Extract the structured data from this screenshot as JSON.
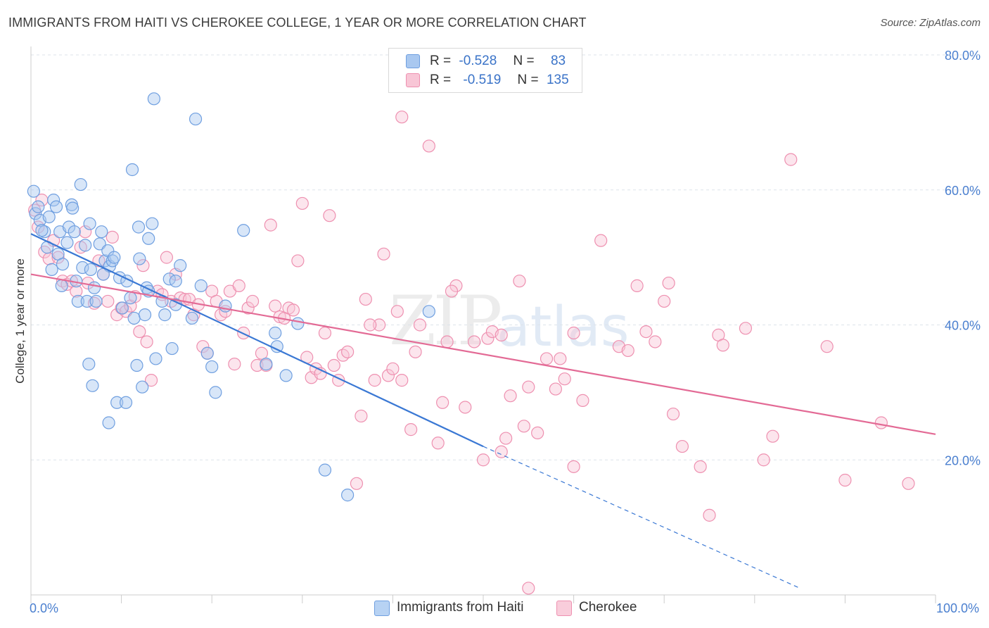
{
  "title": "IMMIGRANTS FROM HAITI VS CHEROKEE COLLEGE, 1 YEAR OR MORE CORRELATION CHART",
  "source": "Source: ZipAtlas.com",
  "watermark": {
    "zip": "ZIP",
    "atlas": "atlas"
  },
  "legend": {
    "r_label": "R =",
    "n_label": "N =",
    "rows": [
      {
        "r": "-0.528",
        "n": "83",
        "color": "#a9c8f0",
        "border": "#6f9fe0"
      },
      {
        "r": "-0.519",
        "n": "135",
        "color": "#f8c6d6",
        "border": "#ee90b0"
      }
    ]
  },
  "bottom_legend": [
    {
      "label": "Immigrants from Haiti",
      "color": "#b7d2f3",
      "border": "#6f9fe0"
    },
    {
      "label": "Cherokee",
      "color": "#f9cddb",
      "border": "#ee90b0"
    }
  ],
  "chart_data": {
    "type": "scatter",
    "xlabel": "",
    "ylabel": "College, 1 year or more",
    "xlim": [
      0,
      100
    ],
    "ylim": [
      0,
      80
    ],
    "x_tick_labels": [
      "0.0%",
      "100.0%"
    ],
    "y_ticks": [
      20,
      40,
      60,
      80
    ],
    "y_tick_labels": [
      "20.0%",
      "40.0%",
      "60.0%",
      "80.0%"
    ],
    "grid": "horizontal dashed",
    "series": [
      {
        "name": "Immigrants from Haiti",
        "color": "#6f9fe0",
        "fill": "rgba(169,200,240,0.45)",
        "trend": {
          "x": [
            0,
            50
          ],
          "y": [
            53.5,
            22.0
          ],
          "dashed_to": [
            85,
            1.0
          ],
          "color": "#3a78d4"
        },
        "points": [
          [
            0.3,
            59.8
          ],
          [
            0.5,
            56.5
          ],
          [
            0.8,
            57.5
          ],
          [
            1.0,
            55.5
          ],
          [
            1.5,
            53.8
          ],
          [
            1.8,
            51.5
          ],
          [
            2.3,
            48.2
          ],
          [
            2.5,
            58.5
          ],
          [
            2.8,
            57.5
          ],
          [
            3.0,
            50.5
          ],
          [
            3.2,
            53.8
          ],
          [
            3.4,
            45.8
          ],
          [
            4.0,
            52.2
          ],
          [
            4.2,
            54.5
          ],
          [
            4.5,
            57.8
          ],
          [
            4.6,
            57.3
          ],
          [
            4.8,
            53.8
          ],
          [
            5.0,
            46.5
          ],
          [
            5.2,
            43.5
          ],
          [
            5.5,
            60.8
          ],
          [
            5.7,
            48.5
          ],
          [
            6.0,
            51.8
          ],
          [
            6.2,
            43.5
          ],
          [
            6.4,
            34.2
          ],
          [
            6.6,
            48.2
          ],
          [
            6.8,
            31.0
          ],
          [
            7.0,
            45.5
          ],
          [
            7.2,
            43.5
          ],
          [
            7.6,
            52.0
          ],
          [
            7.8,
            53.8
          ],
          [
            8.2,
            49.5
          ],
          [
            8.5,
            51.0
          ],
          [
            8.6,
            25.5
          ],
          [
            8.7,
            48.7
          ],
          [
            9.0,
            49.5
          ],
          [
            9.2,
            50.0
          ],
          [
            9.5,
            28.5
          ],
          [
            9.8,
            47.0
          ],
          [
            10.1,
            42.5
          ],
          [
            10.5,
            28.5
          ],
          [
            10.6,
            46.5
          ],
          [
            11.0,
            44.0
          ],
          [
            11.2,
            63.0
          ],
          [
            11.4,
            41.0
          ],
          [
            11.7,
            34.0
          ],
          [
            11.9,
            54.5
          ],
          [
            12.0,
            49.8
          ],
          [
            12.3,
            30.8
          ],
          [
            12.6,
            41.5
          ],
          [
            12.8,
            45.5
          ],
          [
            13.0,
            52.8
          ],
          [
            13.4,
            55.0
          ],
          [
            13.6,
            73.5
          ],
          [
            13.8,
            35.0
          ],
          [
            14.5,
            43.5
          ],
          [
            14.8,
            41.5
          ],
          [
            15.3,
            46.8
          ],
          [
            15.6,
            36.5
          ],
          [
            16.0,
            46.5
          ],
          [
            16.5,
            48.8
          ],
          [
            17.8,
            41.0
          ],
          [
            18.2,
            70.5
          ],
          [
            18.8,
            45.8
          ],
          [
            19.5,
            35.8
          ],
          [
            20.0,
            33.8
          ],
          [
            20.4,
            30.0
          ],
          [
            21.5,
            42.8
          ],
          [
            23.5,
            54.0
          ],
          [
            26.0,
            34.2
          ],
          [
            27.0,
            38.8
          ],
          [
            27.2,
            36.8
          ],
          [
            28.2,
            32.5
          ],
          [
            29.5,
            40.2
          ],
          [
            32.5,
            18.5
          ],
          [
            35.0,
            14.8
          ],
          [
            44.0,
            42.0
          ],
          [
            16.0,
            43.0
          ],
          [
            13.0,
            45.0
          ],
          [
            8.0,
            47.5
          ],
          [
            3.5,
            49.0
          ],
          [
            2.0,
            56.0
          ],
          [
            1.2,
            54.0
          ],
          [
            6.5,
            55.0
          ]
        ]
      },
      {
        "name": "Cherokee",
        "color": "#ee90b0",
        "fill": "rgba(248,198,214,0.45)",
        "trend": {
          "x": [
            0,
            100
          ],
          "y": [
            47.5,
            23.8
          ],
          "color": "#e36a95"
        },
        "points": [
          [
            0.4,
            57.0
          ],
          [
            0.8,
            54.5
          ],
          [
            1.2,
            58.5
          ],
          [
            1.5,
            50.8
          ],
          [
            2.0,
            49.8
          ],
          [
            2.5,
            52.5
          ],
          [
            3.0,
            50.0
          ],
          [
            3.5,
            46.5
          ],
          [
            4.0,
            46.0
          ],
          [
            4.5,
            46.5
          ],
          [
            5.0,
            45.0
          ],
          [
            5.5,
            51.5
          ],
          [
            6.0,
            53.8
          ],
          [
            6.3,
            46.2
          ],
          [
            7.0,
            43.2
          ],
          [
            7.5,
            49.5
          ],
          [
            8.0,
            47.5
          ],
          [
            8.5,
            43.5
          ],
          [
            9.0,
            53.0
          ],
          [
            9.5,
            41.5
          ],
          [
            10.0,
            42.5
          ],
          [
            10.5,
            42.0
          ],
          [
            11.0,
            42.8
          ],
          [
            11.5,
            44.2
          ],
          [
            12.0,
            39.0
          ],
          [
            12.4,
            48.8
          ],
          [
            12.8,
            37.5
          ],
          [
            13.3,
            31.8
          ],
          [
            14.0,
            45.0
          ],
          [
            14.5,
            44.5
          ],
          [
            15.0,
            50.0
          ],
          [
            15.5,
            43.5
          ],
          [
            16.0,
            47.5
          ],
          [
            16.5,
            44.0
          ],
          [
            17.0,
            43.8
          ],
          [
            17.5,
            43.8
          ],
          [
            18.0,
            41.5
          ],
          [
            18.5,
            43.0
          ],
          [
            19.0,
            36.8
          ],
          [
            19.5,
            35.8
          ],
          [
            20.0,
            45.0
          ],
          [
            20.5,
            43.5
          ],
          [
            21.0,
            41.5
          ],
          [
            21.5,
            42.0
          ],
          [
            22.0,
            45.0
          ],
          [
            22.5,
            34.2
          ],
          [
            23.0,
            45.8
          ],
          [
            23.5,
            38.8
          ],
          [
            24.0,
            42.5
          ],
          [
            24.5,
            43.5
          ],
          [
            25.0,
            34.0
          ],
          [
            25.5,
            35.8
          ],
          [
            26.0,
            34.0
          ],
          [
            26.5,
            54.8
          ],
          [
            27.0,
            42.8
          ],
          [
            27.5,
            41.2
          ],
          [
            28.0,
            41.0
          ],
          [
            28.5,
            42.5
          ],
          [
            29.0,
            42.2
          ],
          [
            29.5,
            49.5
          ],
          [
            30.0,
            58.0
          ],
          [
            30.5,
            35.2
          ],
          [
            31.0,
            32.2
          ],
          [
            31.5,
            33.5
          ],
          [
            32.0,
            32.8
          ],
          [
            32.5,
            38.8
          ],
          [
            33.0,
            56.2
          ],
          [
            33.5,
            34.0
          ],
          [
            34.0,
            31.8
          ],
          [
            34.5,
            35.5
          ],
          [
            35.0,
            36.0
          ],
          [
            36.0,
            16.5
          ],
          [
            36.5,
            26.5
          ],
          [
            37.0,
            43.8
          ],
          [
            38.0,
            31.8
          ],
          [
            38.5,
            40.0
          ],
          [
            39.0,
            50.5
          ],
          [
            39.5,
            32.5
          ],
          [
            40.0,
            33.5
          ],
          [
            40.5,
            42.0
          ],
          [
            41.0,
            31.8
          ],
          [
            42.0,
            24.5
          ],
          [
            42.5,
            36.0
          ],
          [
            43.0,
            40.0
          ],
          [
            44.0,
            66.5
          ],
          [
            45.0,
            22.5
          ],
          [
            45.5,
            28.5
          ],
          [
            46.0,
            37.5
          ],
          [
            47.0,
            45.8
          ],
          [
            48.0,
            27.8
          ],
          [
            49.0,
            37.5
          ],
          [
            50.0,
            20.0
          ],
          [
            50.5,
            38.0
          ],
          [
            51.0,
            39.0
          ],
          [
            52.0,
            21.2
          ],
          [
            52.5,
            23.2
          ],
          [
            53.0,
            29.5
          ],
          [
            54.0,
            46.5
          ],
          [
            54.5,
            25.0
          ],
          [
            55.0,
            30.8
          ],
          [
            56.0,
            24.0
          ],
          [
            57.0,
            35.0
          ],
          [
            58.0,
            30.5
          ],
          [
            58.5,
            35.0
          ],
          [
            59.0,
            32.0
          ],
          [
            60.0,
            19.0
          ],
          [
            61.0,
            28.8
          ],
          [
            63.0,
            52.5
          ],
          [
            65.0,
            36.8
          ],
          [
            66.0,
            36.2
          ],
          [
            67.0,
            45.8
          ],
          [
            68.0,
            39.0
          ],
          [
            69.0,
            37.5
          ],
          [
            70.0,
            43.5
          ],
          [
            70.5,
            46.2
          ],
          [
            71.0,
            26.8
          ],
          [
            72.0,
            22.0
          ],
          [
            74.0,
            19.0
          ],
          [
            75.0,
            11.8
          ],
          [
            76.0,
            38.5
          ],
          [
            76.5,
            37.0
          ],
          [
            79.0,
            39.5
          ],
          [
            81.0,
            20.0
          ],
          [
            82.0,
            23.5
          ],
          [
            84.0,
            64.5
          ],
          [
            88.0,
            36.8
          ],
          [
            90.0,
            17.0
          ],
          [
            94.0,
            25.5
          ],
          [
            97.0,
            16.5
          ],
          [
            55.0,
            1.0
          ],
          [
            41.0,
            70.8
          ],
          [
            52.0,
            38.5
          ],
          [
            60.0,
            38.8
          ],
          [
            46.5,
            45.0
          ],
          [
            37.5,
            40.0
          ]
        ]
      }
    ]
  }
}
